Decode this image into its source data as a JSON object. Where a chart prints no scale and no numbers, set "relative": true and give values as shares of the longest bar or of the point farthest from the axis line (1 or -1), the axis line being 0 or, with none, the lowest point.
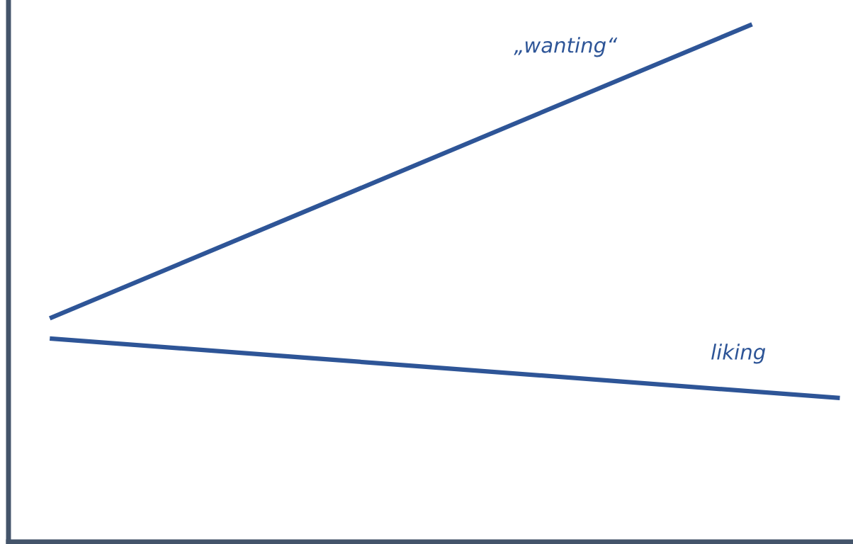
{
  "chart_data": {
    "type": "line",
    "relative": true,
    "categories": [
      null,
      null,
      null,
      null,
      null,
      null,
      null,
      null,
      null,
      null
    ],
    "series": [
      {
        "name": "„wanting“",
        "color": "#2e5597",
        "values": [
          0.432,
          null,
          null,
          null,
          null,
          null,
          null,
          null,
          1.0,
          null
        ]
      },
      {
        "name": "liking",
        "color": "#2e5597",
        "values": [
          0.393,
          null,
          null,
          null,
          null,
          null,
          null,
          null,
          null,
          0.278
        ]
      }
    ]
  }
}
